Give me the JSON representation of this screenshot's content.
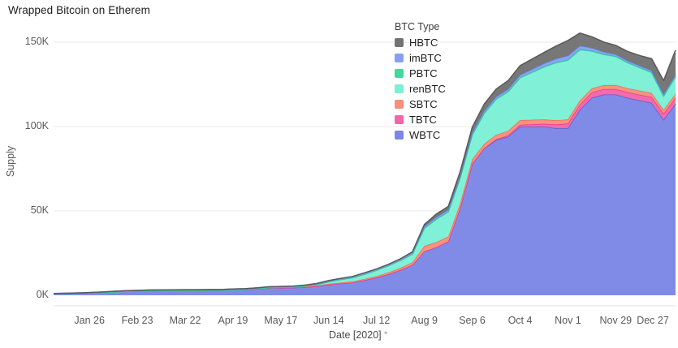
{
  "title": "Wrapped Bitcoin on Etherem",
  "y_axis": {
    "label": "Supply",
    "tick_labels": [
      "0K",
      "50K",
      "100K",
      "150K"
    ],
    "tick_values": [
      0,
      50,
      100,
      150
    ]
  },
  "x_axis": {
    "title": "Date [2020]",
    "title_suffix": "⁎",
    "tick_labels": [
      "Jan 26",
      "Feb 23",
      "Mar 22",
      "Apr 19",
      "May 17",
      "Jun 14",
      "Jul 12",
      "Aug 9",
      "Sep 6",
      "Oct 4",
      "Nov 1",
      "Nov 29",
      "Dec 27"
    ],
    "tick_indices": [
      3,
      7,
      11,
      15,
      19,
      23,
      27,
      31,
      35,
      39,
      43,
      47,
      51
    ]
  },
  "legend": {
    "title": "BTC Type"
  },
  "colors": {
    "grid": "#e8e8e8",
    "axis_line": "#e2e2e2",
    "tick_text": "#595959",
    "title_text": "#1c1c1c"
  },
  "chart_data": {
    "type": "area",
    "stacked": true,
    "title": "Wrapped Bitcoin on Etherem",
    "xlabel": "Date [2020]",
    "ylabel": "Supply",
    "units": "thousand BTC (K)",
    "ylim": [
      0,
      160
    ],
    "grid": "horizontal",
    "legend_position": "top-center",
    "legend_order_top_to_bottom": [
      "HBTC",
      "imBTC",
      "PBTC",
      "renBTC",
      "SBTC",
      "TBTC",
      "WBTC"
    ],
    "x": [
      "Jan 5",
      "Jan 12",
      "Jan 19",
      "Jan 26",
      "Feb 2",
      "Feb 9",
      "Feb 16",
      "Feb 23",
      "Mar 1",
      "Mar 8",
      "Mar 15",
      "Mar 22",
      "Mar 29",
      "Apr 5",
      "Apr 12",
      "Apr 19",
      "Apr 26",
      "May 3",
      "May 10",
      "May 17",
      "May 24",
      "May 31",
      "Jun 7",
      "Jun 14",
      "Jun 21",
      "Jun 28",
      "Jul 5",
      "Jul 12",
      "Jul 19",
      "Jul 26",
      "Aug 2",
      "Aug 9",
      "Aug 16",
      "Aug 23",
      "Aug 30",
      "Sep 6",
      "Sep 13",
      "Sep 20",
      "Sep 27",
      "Oct 4",
      "Oct 11",
      "Oct 18",
      "Oct 25",
      "Nov 1",
      "Nov 8",
      "Nov 15",
      "Nov 22",
      "Nov 29",
      "Dec 6",
      "Dec 13",
      "Dec 20",
      "Dec 27",
      "Jan 3"
    ],
    "series_stack_order": "bottom to top",
    "series": [
      {
        "name": "WBTC",
        "fill": "#7b87e6",
        "stroke": "#5464d4",
        "values": [
          0.9,
          1.0,
          1.15,
          1.3,
          1.6,
          2.0,
          2.3,
          2.5,
          2.7,
          2.8,
          2.85,
          2.9,
          2.9,
          2.95,
          3.0,
          3.2,
          3.4,
          3.7,
          4.3,
          4.4,
          4.5,
          4.8,
          5.4,
          6.3,
          7.0,
          7.6,
          9.0,
          10.5,
          12.5,
          15.0,
          18.0,
          26.0,
          28.5,
          32.0,
          52.0,
          78.0,
          87.0,
          92.0,
          94.0,
          100.0,
          100.0,
          100.0,
          99.0,
          99.0,
          110.0,
          117.0,
          119.0,
          119.0,
          117.0,
          115.5,
          114.0,
          104.0,
          113.5
        ]
      },
      {
        "name": "TBTC",
        "fill": "#f266aa",
        "stroke": "#e83a90",
        "values": [
          0,
          0,
          0,
          0,
          0,
          0,
          0,
          0,
          0,
          0,
          0,
          0,
          0,
          0,
          0,
          0,
          0,
          0,
          0,
          0,
          0,
          0,
          0,
          0,
          0,
          0,
          0,
          0,
          0,
          0,
          0,
          0,
          0,
          0,
          0,
          0,
          0.2,
          0.5,
          0.8,
          1.0,
          1.3,
          1.6,
          2.2,
          2.8,
          3.0,
          3.2,
          3.2,
          3.2,
          3.3,
          3.4,
          3.5,
          3.5,
          3.6
        ]
      },
      {
        "name": "SBTC",
        "fill": "#f98f7c",
        "stroke": "#f26b55",
        "values": [
          0,
          0,
          0,
          0,
          0,
          0,
          0,
          0,
          0,
          0,
          0,
          0,
          0,
          0,
          0,
          0,
          0,
          0.2,
          0.2,
          0.3,
          0.3,
          0.4,
          0.4,
          0.5,
          0.5,
          0.6,
          0.7,
          0.8,
          1.0,
          1.2,
          1.5,
          3.2,
          3.0,
          2.8,
          2.6,
          2.5,
          2.5,
          2.6,
          2.7,
          2.8,
          2.7,
          2.6,
          2.5,
          2.4,
          2.4,
          2.4,
          2.4,
          2.4,
          2.4,
          2.4,
          2.4,
          2.4,
          2.4
        ]
      },
      {
        "name": "renBTC",
        "fill": "#7cefd6",
        "stroke": "#50e3c2",
        "values": [
          0,
          0,
          0,
          0,
          0,
          0,
          0,
          0,
          0,
          0,
          0,
          0,
          0,
          0,
          0,
          0,
          0,
          0,
          0,
          0,
          0,
          0.2,
          0.5,
          1.2,
          1.8,
          2.2,
          2.8,
          3.5,
          4.0,
          4.4,
          4.8,
          10.4,
          13.5,
          14.5,
          15.0,
          14.4,
          18.0,
          21.0,
          23.0,
          25.0,
          28.0,
          31.0,
          34.0,
          35.0,
          30.0,
          22.0,
          18.0,
          16.8,
          15.0,
          13.5,
          12.0,
          8.0,
          10.0
        ]
      },
      {
        "name": "PBTC",
        "fill": "#43d79d",
        "stroke": "#2cc488",
        "values": [
          0,
          0,
          0,
          0,
          0,
          0,
          0,
          0,
          0,
          0,
          0,
          0,
          0,
          0,
          0,
          0,
          0,
          0,
          0,
          0,
          0,
          0,
          0,
          0,
          0,
          0,
          0,
          0,
          0,
          0.1,
          0.15,
          0.2,
          0.25,
          0.3,
          0.3,
          0.3,
          0.3,
          0.3,
          0.3,
          0.3,
          0.3,
          0.3,
          0.3,
          0.3,
          0.3,
          0.3,
          0.3,
          0.3,
          0.3,
          0.3,
          0.3,
          0.3,
          0.3
        ]
      },
      {
        "name": "imBTC",
        "fill": "#85a0f2",
        "stroke": "#6488ee",
        "values": [
          0.2,
          0.2,
          0.25,
          0.3,
          0.3,
          0.35,
          0.4,
          0.4,
          0.4,
          0.4,
          0.4,
          0.4,
          0.4,
          0.45,
          0.45,
          0.5,
          0.5,
          0.5,
          0.55,
          0.55,
          0.6,
          0.6,
          0.65,
          0.7,
          0.7,
          0.75,
          0.8,
          0.8,
          0.85,
          0.9,
          1.0,
          1.0,
          1.1,
          1.1,
          1.2,
          1.2,
          1.3,
          1.3,
          1.4,
          1.5,
          1.7,
          1.9,
          2.2,
          2.5,
          2.2,
          1.8,
          1.4,
          1.1,
          1.0,
          1.0,
          1.0,
          1.0,
          1.0
        ]
      },
      {
        "name": "HBTC",
        "fill": "#737373",
        "stroke": "#595959",
        "values": [
          0,
          0,
          0,
          0,
          0,
          0,
          0,
          0,
          0,
          0,
          0,
          0,
          0,
          0,
          0,
          0,
          0,
          0,
          0,
          0,
          0,
          0,
          0,
          0,
          0,
          0,
          0,
          0,
          0,
          0,
          0.3,
          1.2,
          1.8,
          2.0,
          2.4,
          3.2,
          4.0,
          4.5,
          5.0,
          5.5,
          6.0,
          6.5,
          7.5,
          9.0,
          7.5,
          6.5,
          5.8,
          5.3,
          5.5,
          6.0,
          7.0,
          8.0,
          14.5
        ]
      }
    ]
  }
}
